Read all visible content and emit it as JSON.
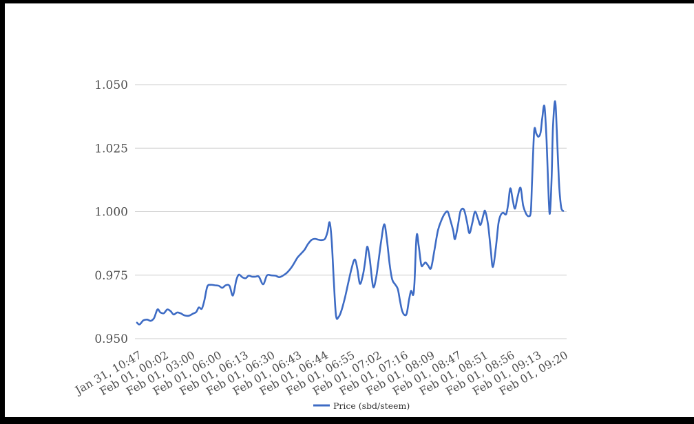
{
  "style": {
    "line_color": "#3d6bc4",
    "grid_color": "#cccccc",
    "axis_text_color": "#4d4d4d",
    "legend_text_color": "#333333",
    "frame_color": "#000000",
    "background_color": "#ffffff"
  },
  "chart_data": {
    "type": "line",
    "title": "",
    "xlabel": "",
    "ylabel": "",
    "grid": "horizontal",
    "legend_position": "bottom-center",
    "ylim": [
      0.95,
      1.05
    ],
    "y_tick_labels": [
      "0.950",
      "0.975",
      "1.000",
      "1.025",
      "1.050"
    ],
    "x_tick_labels": [
      "Jan 31, 10:47",
      "Feb 01, 00:02",
      "Feb 01, 03:00",
      "Feb 01, 06:00",
      "Feb 01, 06:13",
      "Feb 01, 06:30",
      "Feb 01, 06:43",
      "Feb 01, 06:44",
      "Feb 01, 06:55",
      "Feb 01, 07:02",
      "Feb 01, 07:16",
      "Feb 01, 08:09",
      "Feb 01, 08:47",
      "Feb 01, 08:51",
      "Feb 01, 08:56",
      "Feb 01, 09:13",
      "Feb 01, 09:20"
    ],
    "series": [
      {
        "name": "Price (sbd/steem)",
        "points": [
          [
            0.0,
            0.9563
          ],
          [
            0.006,
            0.9556
          ],
          [
            0.015,
            0.9572
          ],
          [
            0.024,
            0.9575
          ],
          [
            0.032,
            0.957
          ],
          [
            0.04,
            0.9581
          ],
          [
            0.048,
            0.9615
          ],
          [
            0.055,
            0.9603
          ],
          [
            0.063,
            0.96
          ],
          [
            0.071,
            0.9615
          ],
          [
            0.079,
            0.9608
          ],
          [
            0.086,
            0.9595
          ],
          [
            0.094,
            0.9603
          ],
          [
            0.102,
            0.96
          ],
          [
            0.111,
            0.9592
          ],
          [
            0.121,
            0.959
          ],
          [
            0.131,
            0.9598
          ],
          [
            0.139,
            0.9605
          ],
          [
            0.145,
            0.9623
          ],
          [
            0.152,
            0.9618
          ],
          [
            0.158,
            0.965
          ],
          [
            0.165,
            0.9705
          ],
          [
            0.173,
            0.9712
          ],
          [
            0.183,
            0.971
          ],
          [
            0.192,
            0.9708
          ],
          [
            0.2,
            0.97
          ],
          [
            0.208,
            0.971
          ],
          [
            0.217,
            0.9708
          ],
          [
            0.225,
            0.967
          ],
          [
            0.233,
            0.973
          ],
          [
            0.239,
            0.9752
          ],
          [
            0.247,
            0.9742
          ],
          [
            0.255,
            0.9738
          ],
          [
            0.262,
            0.9748
          ],
          [
            0.27,
            0.9744
          ],
          [
            0.278,
            0.9744
          ],
          [
            0.286,
            0.9744
          ],
          [
            0.296,
            0.9714
          ],
          [
            0.305,
            0.9749
          ],
          [
            0.315,
            0.9749
          ],
          [
            0.325,
            0.9748
          ],
          [
            0.334,
            0.9742
          ],
          [
            0.344,
            0.975
          ],
          [
            0.352,
            0.976
          ],
          [
            0.36,
            0.9775
          ],
          [
            0.368,
            0.9795
          ],
          [
            0.376,
            0.9818
          ],
          [
            0.384,
            0.9833
          ],
          [
            0.393,
            0.985
          ],
          [
            0.401,
            0.9872
          ],
          [
            0.409,
            0.9888
          ],
          [
            0.417,
            0.9893
          ],
          [
            0.425,
            0.989
          ],
          [
            0.433,
            0.9888
          ],
          [
            0.441,
            0.9893
          ],
          [
            0.447,
            0.992
          ],
          [
            0.452,
            0.9958
          ],
          [
            0.457,
            0.988
          ],
          [
            0.462,
            0.972
          ],
          [
            0.467,
            0.959
          ],
          [
            0.473,
            0.9585
          ],
          [
            0.48,
            0.9612
          ],
          [
            0.488,
            0.9662
          ],
          [
            0.496,
            0.9722
          ],
          [
            0.504,
            0.978
          ],
          [
            0.511,
            0.9812
          ],
          [
            0.517,
            0.9775
          ],
          [
            0.523,
            0.9716
          ],
          [
            0.53,
            0.975
          ],
          [
            0.535,
            0.98
          ],
          [
            0.54,
            0.9862
          ],
          [
            0.546,
            0.9815
          ],
          [
            0.554,
            0.9705
          ],
          [
            0.561,
            0.974
          ],
          [
            0.567,
            0.981
          ],
          [
            0.573,
            0.9885
          ],
          [
            0.58,
            0.995
          ],
          [
            0.586,
            0.9895
          ],
          [
            0.593,
            0.979
          ],
          [
            0.599,
            0.9732
          ],
          [
            0.606,
            0.9713
          ],
          [
            0.612,
            0.9695
          ],
          [
            0.617,
            0.965
          ],
          [
            0.622,
            0.961
          ],
          [
            0.628,
            0.9593
          ],
          [
            0.633,
            0.96
          ],
          [
            0.638,
            0.965
          ],
          [
            0.643,
            0.9688
          ],
          [
            0.648,
            0.9672
          ],
          [
            0.651,
            0.972
          ],
          [
            0.656,
            0.9905
          ],
          [
            0.661,
            0.9865
          ],
          [
            0.667,
            0.979
          ],
          [
            0.672,
            0.9792
          ],
          [
            0.677,
            0.98
          ],
          [
            0.683,
            0.9788
          ],
          [
            0.69,
            0.9778
          ],
          [
            0.698,
            0.985
          ],
          [
            0.706,
            0.9925
          ],
          [
            0.714,
            0.9965
          ],
          [
            0.722,
            0.9992
          ],
          [
            0.729,
            1.0
          ],
          [
            0.735,
            0.9968
          ],
          [
            0.742,
            0.9925
          ],
          [
            0.746,
            0.9892
          ],
          [
            0.753,
            0.9945
          ],
          [
            0.759,
            1.0002
          ],
          [
            0.767,
            1.0008
          ],
          [
            0.774,
            0.9962
          ],
          [
            0.78,
            0.9915
          ],
          [
            0.787,
            0.9958
          ],
          [
            0.793,
            1.0
          ],
          [
            0.8,
            0.9973
          ],
          [
            0.806,
            0.9948
          ],
          [
            0.813,
            0.9988
          ],
          [
            0.817,
            1.0002
          ],
          [
            0.824,
            0.9945
          ],
          [
            0.83,
            0.985
          ],
          [
            0.835,
            0.9782
          ],
          [
            0.842,
            0.9858
          ],
          [
            0.848,
            0.9952
          ],
          [
            0.853,
            0.9985
          ],
          [
            0.859,
            0.9996
          ],
          [
            0.866,
            0.999
          ],
          [
            0.871,
            1.003
          ],
          [
            0.876,
            1.0092
          ],
          [
            0.882,
            1.0042
          ],
          [
            0.887,
            1.0012
          ],
          [
            0.893,
            1.0058
          ],
          [
            0.9,
            1.0094
          ],
          [
            0.906,
            1.0025
          ],
          [
            0.913,
            0.9992
          ],
          [
            0.919,
            0.9982
          ],
          [
            0.924,
            1.0
          ],
          [
            0.927,
            1.012
          ],
          [
            0.932,
            1.0318
          ],
          [
            0.937,
            1.0307
          ],
          [
            0.942,
            1.0295
          ],
          [
            0.947,
            1.0312
          ],
          [
            0.951,
            1.037
          ],
          [
            0.956,
            1.0415
          ],
          [
            0.961,
            1.028
          ],
          [
            0.966,
            1.005
          ],
          [
            0.969,
            0.9996
          ],
          [
            0.973,
            1.014
          ],
          [
            0.976,
            1.033
          ],
          [
            0.981,
            1.0435
          ],
          [
            0.985,
            1.032
          ],
          [
            0.99,
            1.012
          ],
          [
            0.995,
            1.002
          ],
          [
            1.0,
            1.0003
          ]
        ]
      }
    ]
  }
}
